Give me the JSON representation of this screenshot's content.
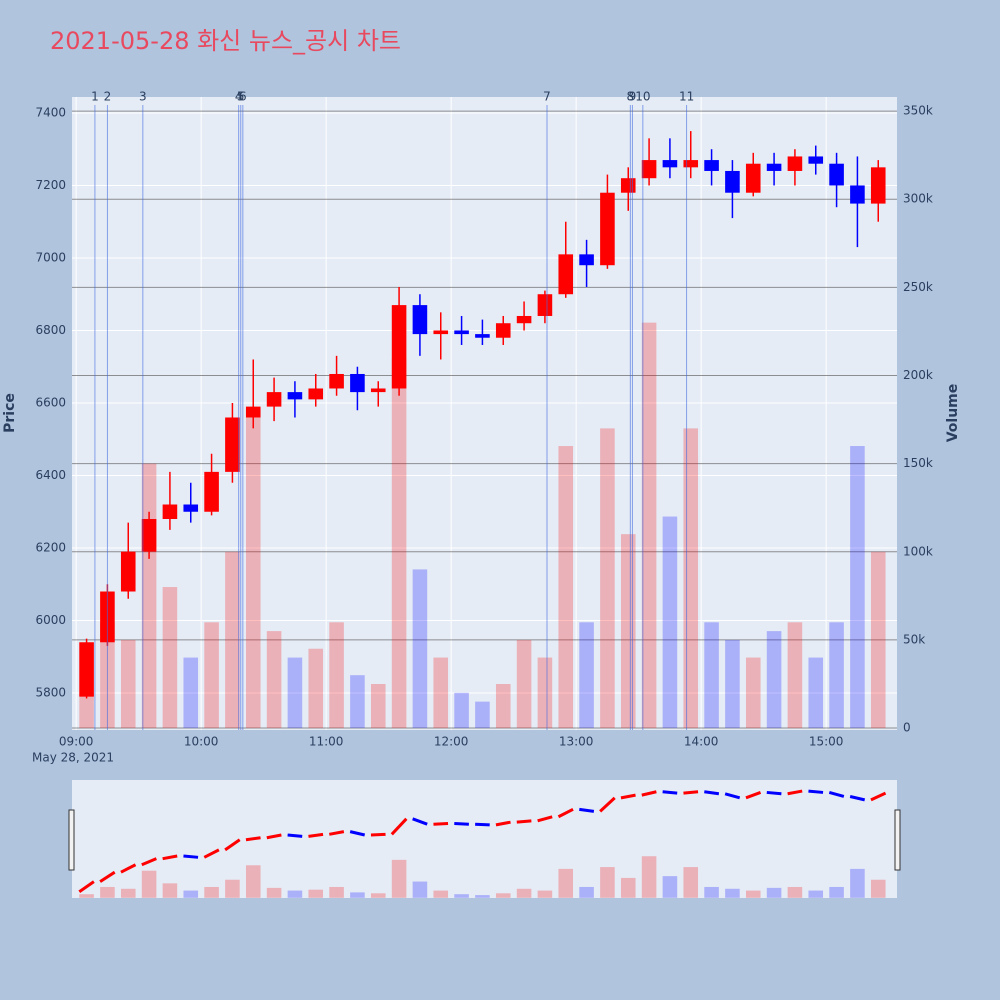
{
  "chart_data": {
    "type": "candlestick",
    "title": "2021-05-28 화신 뉴스_공시 차트",
    "x_date_label": "May 28, 2021",
    "y_title": "Price",
    "y2_title": "Volume",
    "up_color": "#ff0000",
    "down_color": "#0000ff",
    "xlim": [
      "08:58",
      "15:34"
    ],
    "xticks": [
      "09:00",
      "10:00",
      "11:00",
      "12:00",
      "13:00",
      "14:00",
      "15:00"
    ],
    "ylim": [
      5698,
      7444
    ],
    "yticks": [
      5800,
      6000,
      6200,
      6400,
      6600,
      6800,
      7000,
      7200,
      7400
    ],
    "y2lim": [
      -1100,
      358000
    ],
    "y2ticks": [
      0,
      {
        "value": 50000,
        "label": "50k"
      },
      {
        "value": 100000,
        "label": "100k"
      },
      {
        "value": 150000,
        "label": "150k"
      },
      {
        "value": 200000,
        "label": "200k"
      },
      {
        "value": 250000,
        "label": "250k"
      },
      {
        "value": 300000,
        "label": "300k"
      },
      {
        "value": 350000,
        "label": "350k"
      }
    ],
    "x": [
      "09:00",
      "09:10",
      "09:20",
      "09:30",
      "09:40",
      "09:50",
      "10:00",
      "10:10",
      "10:20",
      "10:30",
      "10:40",
      "10:50",
      "11:00",
      "11:10",
      "11:20",
      "11:30",
      "11:40",
      "11:50",
      "12:00",
      "12:10",
      "12:20",
      "12:30",
      "12:40",
      "12:50",
      "13:00",
      "13:10",
      "13:20",
      "13:30",
      "13:40",
      "13:50",
      "14:00",
      "14:10",
      "14:20",
      "14:30",
      "14:40",
      "14:50",
      "15:00",
      "15:10",
      "15:20"
    ],
    "open": [
      5790,
      5940,
      6080,
      6190,
      6280,
      6320,
      6300,
      6410,
      6560,
      6590,
      6630,
      6610,
      6640,
      6680,
      6630,
      6640,
      6870,
      6790,
      6800,
      6790,
      6780,
      6820,
      6840,
      6900,
      7010,
      6980,
      7180,
      7220,
      7270,
      7250,
      7270,
      7240,
      7180,
      7260,
      7240,
      7280,
      7260,
      7200,
      7150
    ],
    "high": [
      5950,
      6100,
      6270,
      6300,
      6410,
      6380,
      6460,
      6600,
      6720,
      6670,
      6660,
      6680,
      6730,
      6700,
      6660,
      6920,
      6900,
      6850,
      6840,
      6830,
      6840,
      6880,
      6910,
      7100,
      7050,
      7230,
      7250,
      7330,
      7330,
      7350,
      7300,
      7270,
      7290,
      7290,
      7300,
      7310,
      7290,
      7280,
      7270
    ],
    "low": [
      5785,
      5930,
      6060,
      6170,
      6250,
      6270,
      6290,
      6380,
      6530,
      6550,
      6560,
      6590,
      6620,
      6580,
      6590,
      6620,
      6730,
      6720,
      6760,
      6760,
      6760,
      6800,
      6820,
      6890,
      6920,
      6970,
      7130,
      7200,
      7220,
      7220,
      7200,
      7110,
      7170,
      7200,
      7200,
      7230,
      7140,
      7030,
      7100
    ],
    "close": [
      5940,
      6080,
      6190,
      6280,
      6320,
      6300,
      6410,
      6560,
      6590,
      6630,
      6610,
      6640,
      6680,
      6630,
      6640,
      6870,
      6790,
      6800,
      6790,
      6780,
      6820,
      6840,
      6900,
      7010,
      6980,
      7180,
      7220,
      7270,
      7250,
      7270,
      7240,
      7180,
      7260,
      7240,
      7280,
      7260,
      7200,
      7150,
      7250
    ],
    "volume": [
      20000,
      60000,
      50000,
      150000,
      80000,
      40000,
      60000,
      100000,
      180000,
      55000,
      40000,
      45000,
      60000,
      30000,
      25000,
      210000,
      90000,
      40000,
      20000,
      15000,
      25000,
      50000,
      40000,
      160000,
      60000,
      170000,
      110000,
      230000,
      120000,
      170000,
      60000,
      50000,
      40000,
      55000,
      60000,
      40000,
      60000,
      160000,
      100000
    ],
    "news": [
      {
        "label": "1",
        "time": "09:09"
      },
      {
        "label": "2",
        "time": "09:15"
      },
      {
        "label": "3",
        "time": "09:32"
      },
      {
        "label": "4",
        "time": "10:18"
      },
      {
        "label": "5",
        "time": "10:19"
      },
      {
        "label": "6",
        "time": "10:20"
      },
      {
        "label": "7",
        "time": "12:46"
      },
      {
        "label": "8",
        "time": "13:26"
      },
      {
        "label": "9",
        "time": "13:27"
      },
      {
        "label": "10",
        "time": "13:32"
      },
      {
        "label": "11",
        "time": "13:53"
      }
    ]
  }
}
